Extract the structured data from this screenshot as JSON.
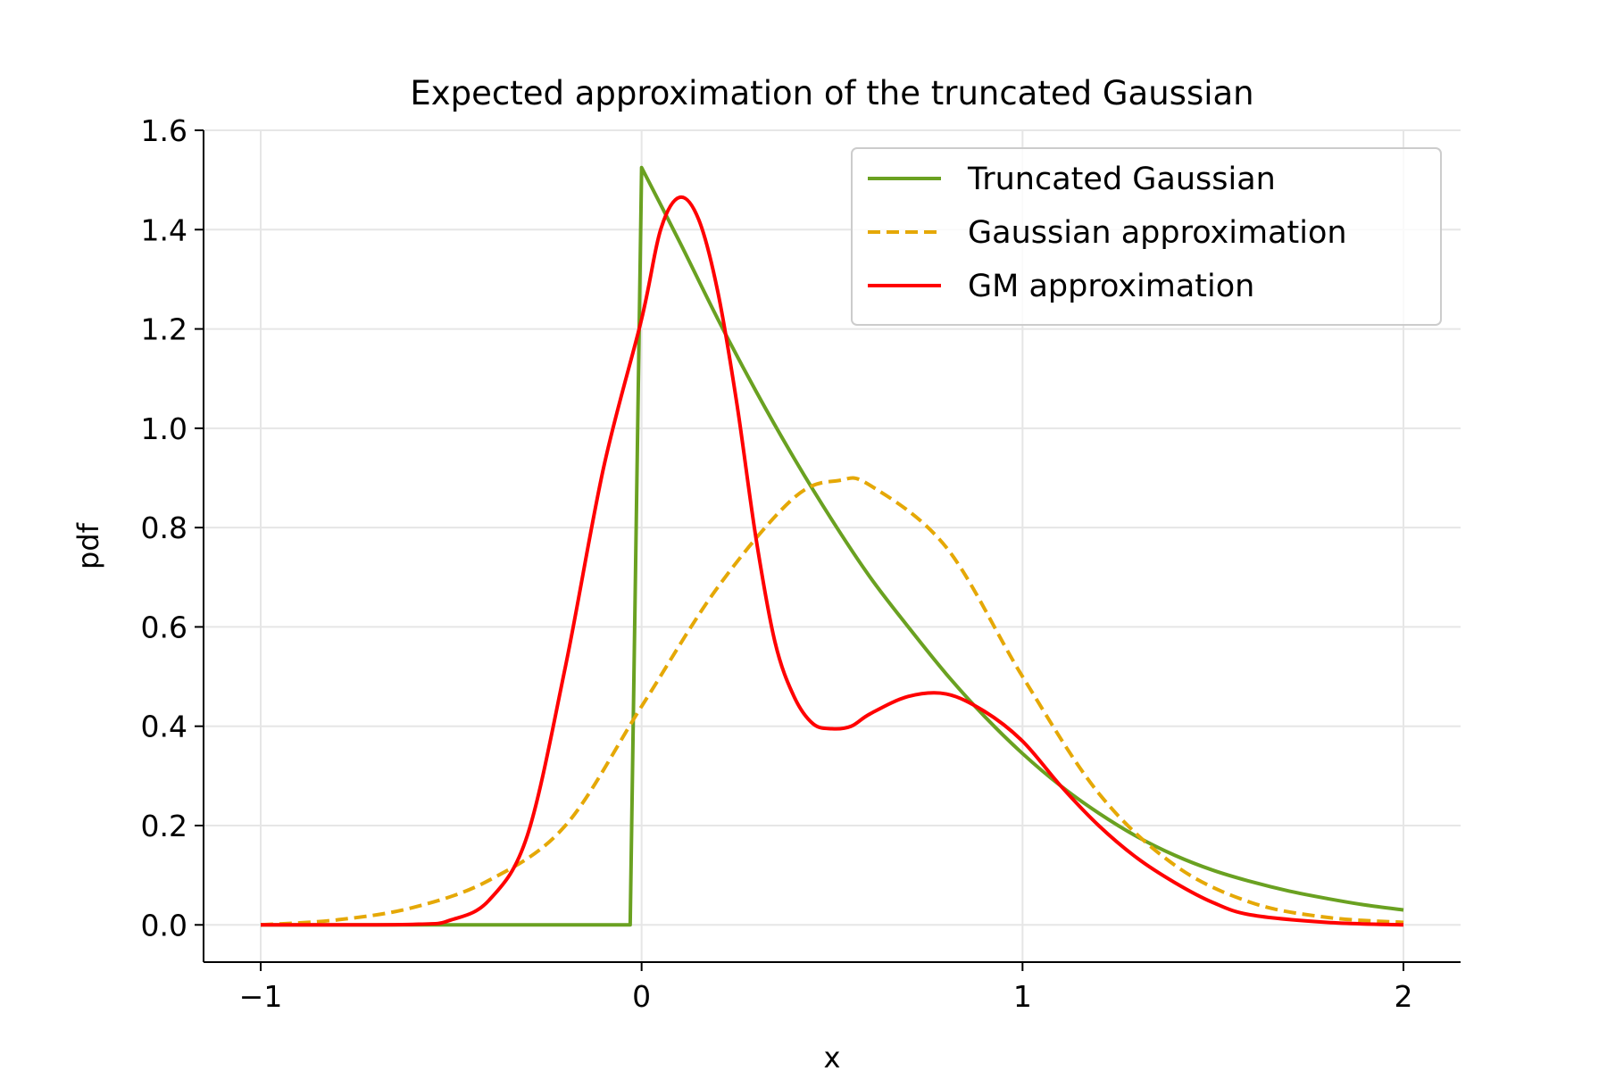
{
  "chart_data": {
    "type": "line",
    "title": "Expected approximation of the truncated Gaussian",
    "xlabel": "x",
    "ylabel": "pdf",
    "xlim": [
      -1.15,
      2.15
    ],
    "ylim": [
      -0.075,
      1.6
    ],
    "xticks": [
      -1,
      0,
      1,
      2
    ],
    "xtick_labels": [
      "−1",
      "0",
      "1",
      "2"
    ],
    "yticks": [
      0.0,
      0.2,
      0.4,
      0.6,
      0.8,
      1.0,
      1.2,
      1.4,
      1.6
    ],
    "ytick_labels": [
      "0.0",
      "0.2",
      "0.4",
      "0.6",
      "0.8",
      "1.0",
      "1.2",
      "1.4",
      "1.6"
    ],
    "grid": true,
    "legend_position": "upper-right",
    "series": [
      {
        "name": "Truncated Gaussian",
        "color": "#6aa121",
        "style": "solid",
        "x": [
          -1.0,
          -0.5,
          -0.03,
          0.0,
          0.1,
          0.2,
          0.3,
          0.4,
          0.5,
          0.6,
          0.7,
          0.8,
          0.9,
          1.0,
          1.1,
          1.2,
          1.3,
          1.4,
          1.5,
          1.6,
          1.7,
          1.8,
          1.9,
          2.0
        ],
        "y": [
          0.0,
          0.0,
          0.0,
          1.525,
          1.375,
          1.22,
          1.075,
          0.94,
          0.815,
          0.7,
          0.6,
          0.505,
          0.42,
          0.345,
          0.28,
          0.225,
          0.178,
          0.14,
          0.11,
          0.087,
          0.068,
          0.053,
          0.04,
          0.03
        ]
      },
      {
        "name": "Gaussian approximation",
        "color": "#e5a806",
        "style": "dashed",
        "x": [
          -1.0,
          -0.8,
          -0.6,
          -0.4,
          -0.2,
          0.0,
          0.2,
          0.4,
          0.52,
          0.6,
          0.8,
          1.0,
          1.2,
          1.4,
          1.6,
          1.8,
          2.0
        ],
        "y": [
          0.0,
          0.01,
          0.035,
          0.09,
          0.2,
          0.44,
          0.68,
          0.86,
          0.895,
          0.885,
          0.76,
          0.5,
          0.265,
          0.12,
          0.045,
          0.015,
          0.005
        ]
      },
      {
        "name": "GM approximation",
        "color": "#ff0000",
        "style": "solid",
        "x": [
          -1.0,
          -0.6,
          -0.5,
          -0.4,
          -0.3,
          -0.2,
          -0.1,
          0.0,
          0.05,
          0.1,
          0.15,
          0.2,
          0.25,
          0.3,
          0.35,
          0.4,
          0.45,
          0.5,
          0.55,
          0.6,
          0.7,
          0.8,
          0.9,
          1.0,
          1.1,
          1.2,
          1.3,
          1.4,
          1.5,
          1.6,
          1.8,
          2.0
        ],
        "y": [
          0.0,
          0.001,
          0.01,
          0.05,
          0.18,
          0.52,
          0.92,
          1.22,
          1.4,
          1.465,
          1.42,
          1.275,
          1.05,
          0.78,
          0.57,
          0.46,
          0.405,
          0.395,
          0.4,
          0.425,
          0.46,
          0.465,
          0.43,
          0.37,
          0.28,
          0.2,
          0.135,
          0.085,
          0.045,
          0.02,
          0.005,
          0.0
        ]
      }
    ]
  }
}
